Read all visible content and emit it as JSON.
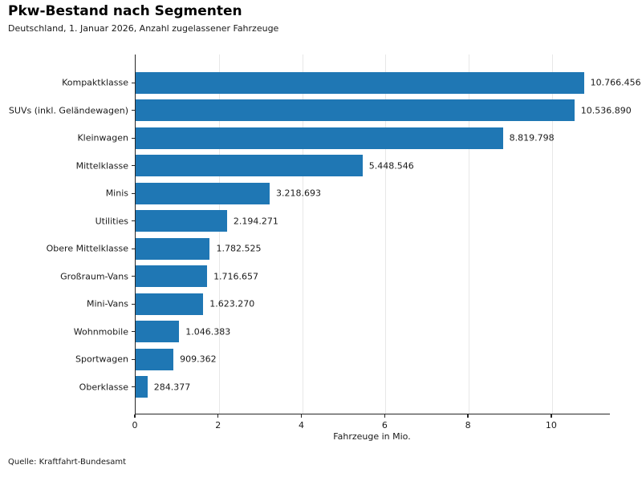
{
  "header": {
    "title": "Pkw-Bestand nach Segmenten",
    "subtitle": "Deutschland, 1. Januar 2026, Anzahl zugelassener Fahrzeuge"
  },
  "footer": {
    "source": "Quelle: Kraftfahrt-Bundesamt"
  },
  "colors": {
    "bar": "#1f77b4",
    "spine": "#262626",
    "grid": "#e7e7e7",
    "text": "#1a1a1a"
  },
  "chart_data": {
    "type": "bar",
    "orientation": "horizontal",
    "title": "Pkw-Bestand nach Segmenten",
    "subtitle": "Deutschland, 1. Januar 2026, Anzahl zugelassener Fahrzeuge",
    "categories": [
      "Kompaktklasse",
      "SUVs (inkl. Geländewagen)",
      "Kleinwagen",
      "Mittelklasse",
      "Minis",
      "Utilities",
      "Obere Mittelklasse",
      "Großraum-Vans",
      "Mini-Vans",
      "Wohnmobile",
      "Sportwagen",
      "Oberklasse"
    ],
    "values": [
      10766456,
      10536890,
      8819798,
      5448546,
      3218693,
      2194271,
      1782525,
      1716657,
      1623270,
      1046383,
      909362,
      284377
    ],
    "value_labels": [
      "10.766.456",
      "10.536.890",
      "8.819.798",
      "5.448.546",
      "3.218.693",
      "2.194.271",
      "1.782.525",
      "1.716.657",
      "1.623.270",
      "1.046.383",
      "909.362",
      "284.377"
    ],
    "xlabel": "Fahrzeuge in Mio.",
    "ylabel": "",
    "xticks": [
      0,
      2,
      4,
      6,
      8,
      10
    ],
    "xtick_labels": [
      "0",
      "2",
      "4",
      "6",
      "8",
      "10"
    ],
    "xlim": [
      0,
      11.39
    ],
    "unit_divisor": 1000000,
    "grid": "vertical gridlines at each x tick, drawn behind bars",
    "legend": "none",
    "source": "Quelle: Kraftfahrt-Bundesamt"
  }
}
